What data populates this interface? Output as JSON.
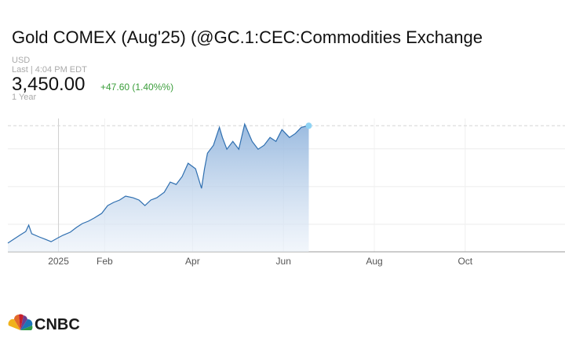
{
  "header": {
    "title": "Gold COMEX (Aug'25) (@GC.1:CEC:Commodities Exchange",
    "currency": "USD",
    "last_updated": "Last | 4:04 PM EDT",
    "price": "3,450.00",
    "change": "+47.60 (1.40%%)",
    "range": "1 Year"
  },
  "chart_data": {
    "type": "line",
    "color": "#2f6fb0",
    "x": [
      -34,
      -30,
      -26,
      -22,
      -20,
      -18,
      -13,
      -9,
      -5,
      0,
      3,
      8,
      12,
      16,
      20,
      24,
      29,
      33,
      37,
      41,
      45,
      50,
      54,
      58,
      62,
      66,
      71,
      75,
      79,
      83,
      87,
      92,
      96,
      98,
      100,
      104,
      108,
      110,
      113,
      117,
      121,
      125,
      130,
      134,
      138,
      142,
      146,
      150,
      155,
      159,
      163,
      168
    ],
    "values": [
      2640,
      2667,
      2694,
      2720,
      2764,
      2705,
      2683,
      2667,
      2650,
      2678,
      2694,
      2716,
      2748,
      2775,
      2791,
      2813,
      2845,
      2899,
      2921,
      2937,
      2964,
      2953,
      2937,
      2899,
      2937,
      2953,
      2991,
      3061,
      3045,
      3099,
      3191,
      3153,
      3018,
      3153,
      3261,
      3315,
      3439,
      3369,
      3288,
      3342,
      3288,
      3461,
      3342,
      3288,
      3315,
      3369,
      3342,
      3423,
      3369,
      3396,
      3439,
      3450
    ],
    "xlim": [
      -34,
      340
    ],
    "ylim": [
      2580,
      3500
    ],
    "xticks": [
      {
        "value": 0,
        "label": "2025"
      },
      {
        "value": 31,
        "label": "Feb"
      },
      {
        "value": 90,
        "label": "Apr"
      },
      {
        "value": 151,
        "label": "Jun"
      },
      {
        "value": 212,
        "label": "Aug"
      },
      {
        "value": 273,
        "label": "Oct"
      }
    ],
    "gridlines": [
      2770,
      3030,
      3290
    ],
    "reference_line": 3450
  },
  "logo": "CNBC"
}
